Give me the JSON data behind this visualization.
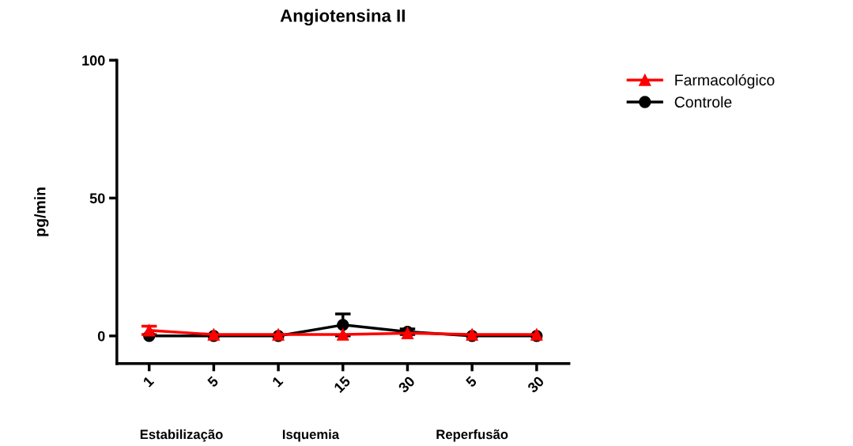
{
  "chart_data": {
    "type": "line",
    "title": "Angiotensina II",
    "ylabel": "pg/min",
    "categories": [
      "1",
      "5",
      "1",
      "15",
      "30",
      "5",
      "30"
    ],
    "series": [
      {
        "name": "Farmacológico",
        "color": "#ff0000",
        "marker": "triangle",
        "values": [
          2,
          0.5,
          0.5,
          0.5,
          1,
          0.5,
          0.5
        ],
        "errors": [
          1.5,
          null,
          null,
          null,
          null,
          null,
          null
        ]
      },
      {
        "name": "Controle",
        "color": "#000000",
        "marker": "circle",
        "values": [
          0,
          0,
          0,
          4,
          1.5,
          0,
          0
        ],
        "errors": [
          null,
          null,
          null,
          4,
          1,
          null,
          null
        ]
      }
    ],
    "ylim": [
      -10,
      100
    ],
    "yticks": [
      0,
      50,
      100
    ],
    "grid": false,
    "legend": "right",
    "annotations": [
      "Estabilização",
      "Isquemia",
      "Reperfusão"
    ]
  }
}
